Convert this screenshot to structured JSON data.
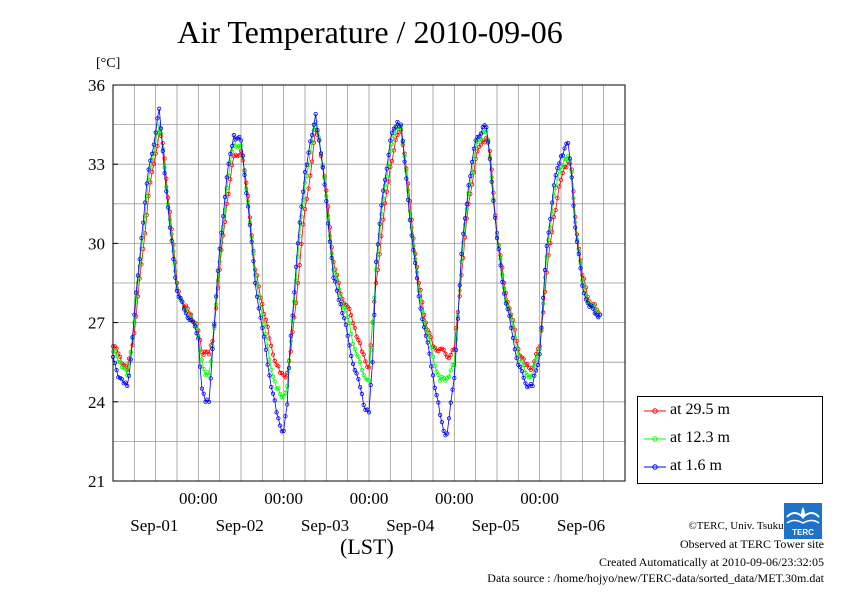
{
  "title": "Air Temperature / 2010-09-06",
  "unit": "[°C]",
  "xaxis_label": "(LST)",
  "footer": {
    "copyright": "©TERC, Univ. Tsukuba",
    "observed": "Observed at TERC Tower site",
    "created": "Created Automatically at 2010-09-06/23:32:05",
    "source": "Data source : /home/hojyo/new/TERC-data/sorted_data/MET.30m.dat"
  },
  "logo_text": "TERC",
  "chart_data": {
    "type": "line",
    "title": "Air Temperature / 2010-09-06",
    "ylabel": "[°C]",
    "xlabel": "(LST)",
    "ylim": [
      21,
      36
    ],
    "y_ticks": [
      21,
      24,
      27,
      30,
      33,
      36
    ],
    "xlim_hours": [
      0,
      144
    ],
    "x_ticks": [
      {
        "hour": 24,
        "time": "00:00",
        "date": "Sep-01"
      },
      {
        "hour": 48,
        "time": "00:00",
        "date": "Sep-02"
      },
      {
        "hour": 72,
        "time": "00:00",
        "date": "Sep-03"
      },
      {
        "hour": 96,
        "time": "00:00",
        "date": "Sep-04"
      },
      {
        "hour": 120,
        "time": "00:00",
        "date": "Sep-05"
      },
      {
        "hour": 144,
        "time": "",
        "date": "Sep-06"
      }
    ],
    "grid": true,
    "legend_position": "bottom-right outside",
    "series": [
      {
        "name": "at 29.5 m",
        "color": "#ff0000",
        "points": [
          [
            0,
            26.1
          ],
          [
            2,
            25.7
          ],
          [
            4,
            25.2
          ],
          [
            6,
            26.6
          ],
          [
            8,
            29.2
          ],
          [
            10,
            31.8
          ],
          [
            12,
            33.4
          ],
          [
            13,
            34.2
          ],
          [
            14,
            33.8
          ],
          [
            16,
            31.2
          ],
          [
            18,
            28.5
          ],
          [
            20,
            27.6
          ],
          [
            22,
            27.3
          ],
          [
            24,
            26.7
          ],
          [
            25,
            25.9
          ],
          [
            26,
            25.9
          ],
          [
            27,
            25.8
          ],
          [
            28,
            26.3
          ],
          [
            30,
            29.0
          ],
          [
            32,
            31.5
          ],
          [
            34,
            33.3
          ],
          [
            36,
            33.5
          ],
          [
            38,
            31.8
          ],
          [
            40,
            29.0
          ],
          [
            42,
            27.7
          ],
          [
            44,
            26.4
          ],
          [
            46,
            25.4
          ],
          [
            47,
            25.1
          ],
          [
            48,
            25.0
          ],
          [
            49,
            25.1
          ],
          [
            50,
            25.9
          ],
          [
            52,
            28.5
          ],
          [
            54,
            31.3
          ],
          [
            56,
            33.1
          ],
          [
            57,
            34.3
          ],
          [
            58,
            33.9
          ],
          [
            60,
            32.0
          ],
          [
            62,
            29.3
          ],
          [
            64,
            28.1
          ],
          [
            66,
            27.6
          ],
          [
            68,
            26.8
          ],
          [
            70,
            25.9
          ],
          [
            72,
            25.3
          ],
          [
            74,
            28.5
          ],
          [
            76,
            30.9
          ],
          [
            78,
            32.9
          ],
          [
            80,
            34.1
          ],
          [
            81,
            34.3
          ],
          [
            82,
            33.4
          ],
          [
            84,
            30.9
          ],
          [
            86,
            28.5
          ],
          [
            88,
            27.0
          ],
          [
            90,
            26.1
          ],
          [
            92,
            26.0
          ],
          [
            94,
            25.7
          ],
          [
            96,
            26.0
          ],
          [
            98,
            28.8
          ],
          [
            100,
            31.5
          ],
          [
            102,
            33.2
          ],
          [
            104,
            33.9
          ],
          [
            105,
            34.0
          ],
          [
            106,
            33.5
          ],
          [
            108,
            30.4
          ],
          [
            110,
            28.5
          ],
          [
            112,
            27.3
          ],
          [
            114,
            26.0
          ],
          [
            116,
            25.4
          ],
          [
            118,
            25.3
          ],
          [
            120,
            26.1
          ],
          [
            122,
            28.9
          ],
          [
            124,
            31.0
          ],
          [
            126,
            32.4
          ],
          [
            127,
            32.9
          ],
          [
            128,
            33.1
          ],
          [
            129,
            32.8
          ],
          [
            130,
            31.0
          ],
          [
            132,
            28.8
          ],
          [
            134,
            27.8
          ],
          [
            136,
            27.5
          ],
          [
            137,
            27.3
          ]
        ]
      },
      {
        "name": "at 12.3 m",
        "color": "#00ff00",
        "points": [
          [
            0,
            25.9
          ],
          [
            2,
            25.5
          ],
          [
            4,
            25.0
          ],
          [
            6,
            27.0
          ],
          [
            8,
            29.8
          ],
          [
            10,
            32.4
          ],
          [
            12,
            33.9
          ],
          [
            13,
            34.5
          ],
          [
            14,
            33.6
          ],
          [
            16,
            30.9
          ],
          [
            18,
            28.3
          ],
          [
            20,
            27.5
          ],
          [
            22,
            27.2
          ],
          [
            24,
            26.5
          ],
          [
            25,
            25.6
          ],
          [
            26,
            25.0
          ],
          [
            27,
            25.0
          ],
          [
            28,
            26.1
          ],
          [
            30,
            29.3
          ],
          [
            32,
            32.1
          ],
          [
            34,
            33.8
          ],
          [
            36,
            33.7
          ],
          [
            38,
            31.6
          ],
          [
            40,
            28.8
          ],
          [
            42,
            27.3
          ],
          [
            44,
            25.6
          ],
          [
            46,
            24.5
          ],
          [
            47,
            24.3
          ],
          [
            48,
            24.2
          ],
          [
            49,
            24.6
          ],
          [
            50,
            26.3
          ],
          [
            52,
            29.5
          ],
          [
            54,
            32.3
          ],
          [
            56,
            33.8
          ],
          [
            57,
            34.6
          ],
          [
            58,
            34.0
          ],
          [
            60,
            31.8
          ],
          [
            62,
            29.0
          ],
          [
            64,
            28.0
          ],
          [
            66,
            27.2
          ],
          [
            68,
            26.0
          ],
          [
            70,
            25.2
          ],
          [
            72,
            24.8
          ],
          [
            74,
            29.0
          ],
          [
            76,
            31.7
          ],
          [
            78,
            33.5
          ],
          [
            80,
            34.4
          ],
          [
            81,
            34.4
          ],
          [
            82,
            33.3
          ],
          [
            84,
            30.6
          ],
          [
            86,
            28.2
          ],
          [
            88,
            26.8
          ],
          [
            90,
            25.7
          ],
          [
            92,
            24.8
          ],
          [
            94,
            24.9
          ],
          [
            96,
            25.4
          ],
          [
            98,
            29.3
          ],
          [
            100,
            31.9
          ],
          [
            102,
            33.6
          ],
          [
            104,
            34.2
          ],
          [
            105,
            34.3
          ],
          [
            106,
            33.3
          ],
          [
            108,
            30.3
          ],
          [
            110,
            28.3
          ],
          [
            112,
            27.1
          ],
          [
            114,
            25.8
          ],
          [
            116,
            25.1
          ],
          [
            118,
            25.0
          ],
          [
            120,
            26.0
          ],
          [
            122,
            29.5
          ],
          [
            124,
            31.8
          ],
          [
            126,
            32.9
          ],
          [
            127,
            33.2
          ],
          [
            128,
            33.3
          ],
          [
            129,
            32.7
          ],
          [
            130,
            30.8
          ],
          [
            132,
            28.6
          ],
          [
            134,
            27.7
          ],
          [
            136,
            27.4
          ],
          [
            137,
            27.3
          ]
        ]
      },
      {
        "name": "at 1.6 m",
        "color": "#0000ff",
        "points": [
          [
            0,
            25.7
          ],
          [
            1,
            25.2
          ],
          [
            2,
            24.9
          ],
          [
            3,
            24.7
          ],
          [
            4,
            24.6
          ],
          [
            5,
            25.6
          ],
          [
            6,
            27.3
          ],
          [
            8,
            30.2
          ],
          [
            10,
            32.8
          ],
          [
            12,
            34.2
          ],
          [
            13,
            35.1
          ],
          [
            14,
            33.5
          ],
          [
            16,
            30.6
          ],
          [
            18,
            28.2
          ],
          [
            20,
            27.5
          ],
          [
            22,
            27.1
          ],
          [
            24,
            26.4
          ],
          [
            25,
            24.5
          ],
          [
            26,
            24.0
          ],
          [
            27,
            24.0
          ],
          [
            28,
            26.0
          ],
          [
            30,
            29.8
          ],
          [
            32,
            32.5
          ],
          [
            34,
            34.1
          ],
          [
            36,
            33.9
          ],
          [
            38,
            31.4
          ],
          [
            40,
            28.5
          ],
          [
            42,
            26.8
          ],
          [
            44,
            25.0
          ],
          [
            46,
            23.6
          ],
          [
            47,
            23.1
          ],
          [
            48,
            22.9
          ],
          [
            49,
            23.9
          ],
          [
            50,
            26.5
          ],
          [
            52,
            30.0
          ],
          [
            54,
            32.7
          ],
          [
            56,
            34.1
          ],
          [
            57,
            34.9
          ],
          [
            58,
            33.9
          ],
          [
            60,
            31.6
          ],
          [
            62,
            28.7
          ],
          [
            64,
            27.7
          ],
          [
            66,
            26.5
          ],
          [
            68,
            25.2
          ],
          [
            70,
            24.3
          ],
          [
            71,
            23.7
          ],
          [
            72,
            23.6
          ],
          [
            73,
            25.5
          ],
          [
            74,
            29.3
          ],
          [
            76,
            32.0
          ],
          [
            78,
            33.9
          ],
          [
            80,
            34.6
          ],
          [
            81,
            34.5
          ],
          [
            82,
            33.1
          ],
          [
            84,
            30.3
          ],
          [
            86,
            28.0
          ],
          [
            88,
            26.5
          ],
          [
            90,
            25.0
          ],
          [
            92,
            23.5
          ],
          [
            93,
            22.9
          ],
          [
            94,
            22.8
          ],
          [
            96,
            24.9
          ],
          [
            98,
            29.6
          ],
          [
            100,
            32.2
          ],
          [
            102,
            33.9
          ],
          [
            104,
            34.4
          ],
          [
            105,
            34.4
          ],
          [
            106,
            33.2
          ],
          [
            108,
            30.2
          ],
          [
            110,
            28.1
          ],
          [
            112,
            26.8
          ],
          [
            114,
            25.4
          ],
          [
            116,
            24.7
          ],
          [
            118,
            24.6
          ],
          [
            120,
            25.8
          ],
          [
            122,
            29.9
          ],
          [
            124,
            32.2
          ],
          [
            126,
            33.3
          ],
          [
            127,
            33.6
          ],
          [
            128,
            33.8
          ],
          [
            129,
            32.5
          ],
          [
            130,
            30.6
          ],
          [
            132,
            28.4
          ],
          [
            134,
            27.6
          ],
          [
            136,
            27.3
          ],
          [
            137,
            27.3
          ]
        ]
      }
    ]
  }
}
